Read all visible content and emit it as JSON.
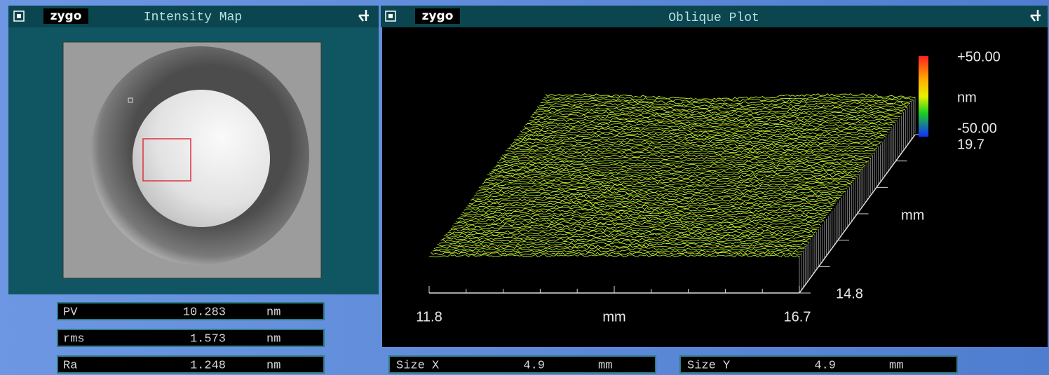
{
  "intensity_map": {
    "title_bar": {
      "logo": "zygo",
      "title": "Intensity Map"
    },
    "results": [
      {
        "label": "PV",
        "value": "10.283",
        "unit": "nm"
      },
      {
        "label": "rms",
        "value": "1.573",
        "unit": "nm"
      },
      {
        "label": "Ra",
        "value": "1.248",
        "unit": "nm"
      }
    ]
  },
  "oblique_plot": {
    "title_bar": {
      "logo": "zygo",
      "title": "Oblique Plot"
    },
    "color_scale": {
      "max": "+50.00",
      "unit": "nm",
      "min": "-50.00"
    },
    "y_axis": {
      "end": "19.7",
      "unit": "mm",
      "start": "14.8"
    },
    "x_axis": {
      "start": "11.8",
      "unit": "mm",
      "end": "16.7"
    },
    "sizes": [
      {
        "label": "Size X",
        "value": "4.9",
        "unit": "mm"
      },
      {
        "label": "Size Y",
        "value": "4.9",
        "unit": "mm"
      }
    ]
  }
}
